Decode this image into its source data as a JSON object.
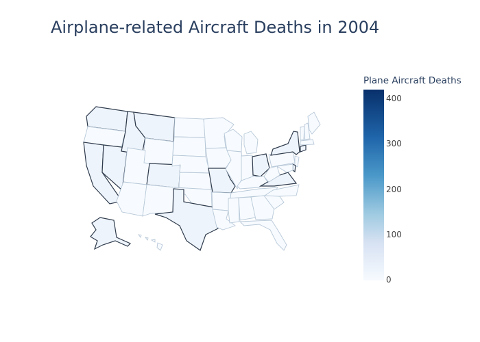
{
  "title": "Airplane-related Aircraft Deaths in 2004",
  "colorbar": {
    "title": "Plane Aircraft Deaths",
    "ticks": [
      "400",
      "300",
      "200",
      "100",
      "0"
    ],
    "range": [
      0,
      420
    ],
    "colorscale": [
      "#f7fbff",
      "#d6e1f2",
      "#9ecae1",
      "#4a98c9",
      "#1f65aa",
      "#08306b"
    ]
  },
  "highlighted_states": [
    "Washington",
    "California",
    "Nevada",
    "Idaho",
    "Montana",
    "Colorado",
    "Texas",
    "Missouri",
    "Ohio",
    "New York",
    "Virginia",
    "Delaware",
    "Connecticut",
    "Alaska"
  ]
}
